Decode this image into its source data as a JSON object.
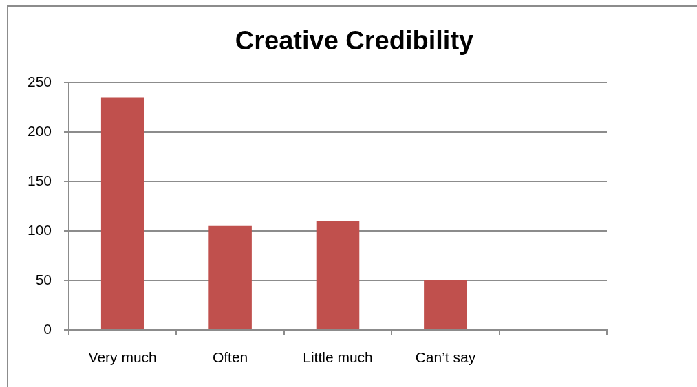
{
  "chart_data": {
    "type": "bar",
    "title": "Creative Credibility",
    "categories": [
      "Very much",
      "Often",
      "Little much",
      "Can’t say",
      null
    ],
    "values": [
      235,
      105,
      110,
      50,
      null
    ],
    "color": "#c0504d",
    "ylim": [
      0,
      250
    ],
    "yticks": [
      0,
      50,
      100,
      150,
      200,
      250
    ],
    "grid": "y"
  }
}
